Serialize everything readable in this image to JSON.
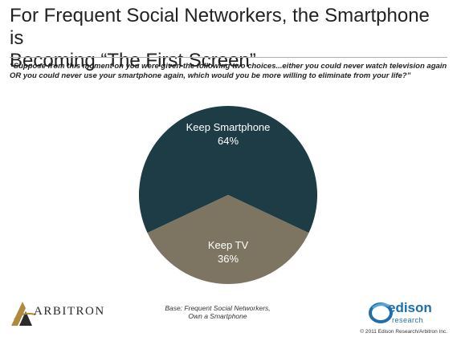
{
  "header": {
    "title_line1": "For Frequent Social Networkers, the Smartphone is",
    "title_line2": "Becoming “The First Screen”",
    "question": "“Suppose from this moment on you were given the following two choices...either you could never watch television again OR you could never use your smartphone again, which would you be more willing to eliminate from your life?”"
  },
  "chart_data": {
    "type": "pie",
    "slices": [
      {
        "label": "Keep Smartphone",
        "value": 64,
        "value_label": "64%",
        "color": "#1d3c45"
      },
      {
        "label": "Keep TV",
        "value": 36,
        "value_label": "36%",
        "color": "#7d7561"
      }
    ]
  },
  "footer": {
    "base_line1": "Base: Frequent Social Networkers,",
    "base_line2": "Own a Smartphone",
    "arbitron_logo": "ARBITRON",
    "edison_logo": "edison",
    "edison_sub": "research",
    "copyright": "© 2011 Edison Research/Arbitron Inc."
  }
}
